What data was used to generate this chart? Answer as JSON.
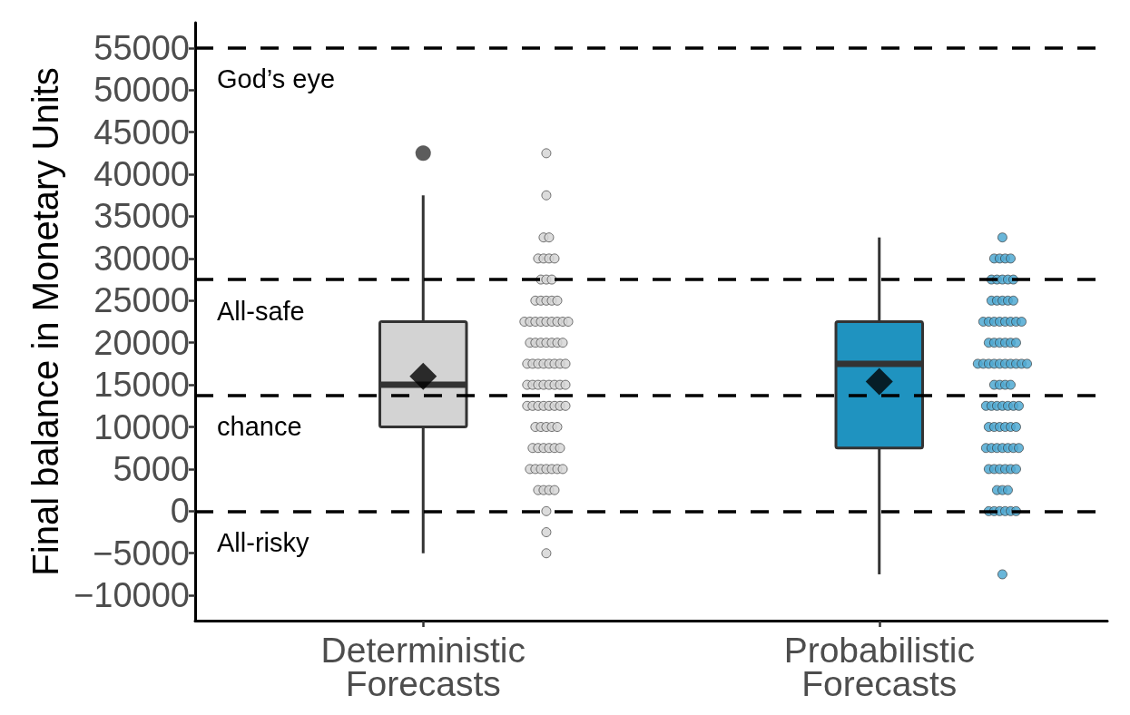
{
  "chart_data": {
    "type": "box",
    "ylabel": "Final balance in Monetary Units",
    "categories": [
      "Deterministic\nForecasts",
      "Probabilistic\nForecasts"
    ],
    "ylim": [
      -13000,
      58000
    ],
    "yticks": [
      {
        "value": -10000,
        "label": "−10000"
      },
      {
        "value": -5000,
        "label": "−5000"
      },
      0,
      5000,
      10000,
      15000,
      20000,
      25000,
      30000,
      35000,
      40000,
      45000,
      50000,
      55000
    ],
    "marker": "circle",
    "ref_lines": [
      {
        "axis": "y",
        "value": 55000,
        "label": "God’s eye",
        "color": "#000000",
        "line_style": "dashed"
      },
      {
        "axis": "y",
        "value": 27500,
        "label": "All-safe",
        "color": "#000000",
        "line_style": "dashed"
      },
      {
        "axis": "y",
        "value": 13750,
        "label": "chance",
        "color": "#000000",
        "line_style": "dashed"
      },
      {
        "axis": "y",
        "value": 0,
        "label": "All-risky",
        "color": "#000000",
        "line_style": "dashed"
      }
    ],
    "series": [
      {
        "colors": [
          "#d3d3d3",
          "#1f93c0"
        ],
        "boxes": [
          {
            "low": -5000,
            "q1": 10000,
            "median": 15000,
            "q3": 22500,
            "high": 37500,
            "mean": 16000,
            "outliers": [
              42500
            ]
          },
          {
            "low": -7500,
            "q1": 7500,
            "median": 17500,
            "q3": 22500,
            "high": 32500,
            "mean": 15400
          }
        ]
      },
      {
        "type": "scatter",
        "color": "#d6d6d6",
        "x": [
          "Deterministic\nForecasts",
          "Deterministic\nForecasts",
          "Deterministic\nForecasts",
          "Deterministic\nForecasts",
          "Deterministic\nForecasts",
          "Deterministic\nForecasts",
          "Deterministic\nForecasts",
          "Deterministic\nForecasts",
          "Deterministic\nForecasts",
          "Deterministic\nForecasts",
          "Deterministic\nForecasts",
          "Deterministic\nForecasts",
          "Deterministic\nForecasts",
          "Deterministic\nForecasts",
          "Deterministic\nForecasts",
          "Deterministic\nForecasts",
          "Deterministic\nForecasts",
          "Deterministic\nForecasts",
          "Deterministic\nForecasts",
          "Deterministic\nForecasts",
          "Deterministic\nForecasts",
          "Deterministic\nForecasts",
          "Deterministic\nForecasts",
          "Deterministic\nForecasts",
          "Deterministic\nForecasts",
          "Deterministic\nForecasts",
          "Deterministic\nForecasts",
          "Deterministic\nForecasts",
          "Deterministic\nForecasts",
          "Deterministic\nForecasts",
          "Deterministic\nForecasts",
          "Deterministic\nForecasts",
          "Deterministic\nForecasts",
          "Deterministic\nForecasts",
          "Deterministic\nForecasts",
          "Deterministic\nForecasts",
          "Deterministic\nForecasts",
          "Deterministic\nForecasts",
          "Deterministic\nForecasts",
          "Deterministic\nForecasts",
          "Deterministic\nForecasts",
          "Deterministic\nForecasts",
          "Deterministic\nForecasts",
          "Deterministic\nForecasts",
          "Deterministic\nForecasts",
          "Deterministic\nForecasts",
          "Deterministic\nForecasts",
          "Deterministic\nForecasts",
          "Deterministic\nForecasts",
          "Deterministic\nForecasts",
          "Deterministic\nForecasts",
          "Deterministic\nForecasts",
          "Deterministic\nForecasts",
          "Deterministic\nForecasts",
          "Deterministic\nForecasts",
          "Deterministic\nForecasts",
          "Deterministic\nForecasts",
          "Deterministic\nForecasts",
          "Deterministic\nForecasts",
          "Deterministic\nForecasts",
          "Deterministic\nForecasts",
          "Deterministic\nForecasts",
          "Deterministic\nForecasts",
          "Deterministic\nForecasts",
          "Deterministic\nForecasts",
          "Deterministic\nForecasts",
          "Deterministic\nForecasts",
          "Deterministic\nForecasts",
          "Deterministic\nForecasts",
          "Deterministic\nForecasts",
          "Deterministic\nForecasts",
          "Deterministic\nForecasts",
          "Deterministic\nForecasts",
          "Deterministic\nForecasts",
          "Deterministic\nForecasts",
          "Deterministic\nForecasts",
          "Deterministic\nForecasts",
          "Deterministic\nForecasts",
          "Deterministic\nForecasts",
          "Deterministic\nForecasts",
          "Deterministic\nForecasts"
        ],
        "values": [
          42500,
          37500,
          32500,
          32500,
          30000,
          30000,
          30000,
          30000,
          27500,
          27500,
          27500,
          25000,
          25000,
          25000,
          25000,
          25000,
          22500,
          22500,
          22500,
          22500,
          22500,
          22500,
          22500,
          22500,
          22500,
          20000,
          20000,
          20000,
          20000,
          20000,
          20000,
          20000,
          17500,
          17500,
          17500,
          17500,
          17500,
          17500,
          17500,
          17500,
          15000,
          15000,
          15000,
          15000,
          15000,
          15000,
          15000,
          15000,
          12500,
          12500,
          12500,
          12500,
          12500,
          12500,
          12500,
          12500,
          10000,
          10000,
          10000,
          10000,
          10000,
          7500,
          7500,
          7500,
          7500,
          7500,
          7500,
          5000,
          5000,
          5000,
          5000,
          5000,
          5000,
          5000,
          2500,
          2500,
          2500,
          2500,
          0,
          -2500,
          -5000
        ]
      },
      {
        "type": "scatter",
        "color": "#4fa9d2",
        "x": [
          "Probabilistic\nForecasts",
          "Probabilistic\nForecasts",
          "Probabilistic\nForecasts",
          "Probabilistic\nForecasts",
          "Probabilistic\nForecasts",
          "Probabilistic\nForecasts",
          "Probabilistic\nForecasts",
          "Probabilistic\nForecasts",
          "Probabilistic\nForecasts",
          "Probabilistic\nForecasts",
          "Probabilistic\nForecasts",
          "Probabilistic\nForecasts",
          "Probabilistic\nForecasts",
          "Probabilistic\nForecasts",
          "Probabilistic\nForecasts",
          "Probabilistic\nForecasts",
          "Probabilistic\nForecasts",
          "Probabilistic\nForecasts",
          "Probabilistic\nForecasts",
          "Probabilistic\nForecasts",
          "Probabilistic\nForecasts",
          "Probabilistic\nForecasts",
          "Probabilistic\nForecasts",
          "Probabilistic\nForecasts",
          "Probabilistic\nForecasts",
          "Probabilistic\nForecasts",
          "Probabilistic\nForecasts",
          "Probabilistic\nForecasts",
          "Probabilistic\nForecasts",
          "Probabilistic\nForecasts",
          "Probabilistic\nForecasts",
          "Probabilistic\nForecasts",
          "Probabilistic\nForecasts",
          "Probabilistic\nForecasts",
          "Probabilistic\nForecasts",
          "Probabilistic\nForecasts",
          "Probabilistic\nForecasts",
          "Probabilistic\nForecasts",
          "Probabilistic\nForecasts",
          "Probabilistic\nForecasts",
          "Probabilistic\nForecasts",
          "Probabilistic\nForecasts",
          "Probabilistic\nForecasts",
          "Probabilistic\nForecasts",
          "Probabilistic\nForecasts",
          "Probabilistic\nForecasts",
          "Probabilistic\nForecasts",
          "Probabilistic\nForecasts",
          "Probabilistic\nForecasts",
          "Probabilistic\nForecasts",
          "Probabilistic\nForecasts",
          "Probabilistic\nForecasts",
          "Probabilistic\nForecasts",
          "Probabilistic\nForecasts",
          "Probabilistic\nForecasts",
          "Probabilistic\nForecasts",
          "Probabilistic\nForecasts",
          "Probabilistic\nForecasts",
          "Probabilistic\nForecasts",
          "Probabilistic\nForecasts",
          "Probabilistic\nForecasts",
          "Probabilistic\nForecasts",
          "Probabilistic\nForecasts",
          "Probabilistic\nForecasts",
          "Probabilistic\nForecasts",
          "Probabilistic\nForecasts",
          "Probabilistic\nForecasts",
          "Probabilistic\nForecasts",
          "Probabilistic\nForecasts",
          "Probabilistic\nForecasts",
          "Probabilistic\nForecasts",
          "Probabilistic\nForecasts",
          "Probabilistic\nForecasts",
          "Probabilistic\nForecasts",
          "Probabilistic\nForecasts",
          "Probabilistic\nForecasts",
          "Probabilistic\nForecasts",
          "Probabilistic\nForecasts",
          "Probabilistic\nForecasts"
        ],
        "values": [
          32500,
          30000,
          30000,
          30000,
          30000,
          27500,
          27500,
          27500,
          27500,
          27500,
          25000,
          25000,
          25000,
          25000,
          25000,
          22500,
          22500,
          22500,
          22500,
          22500,
          22500,
          22500,
          22500,
          20000,
          20000,
          20000,
          20000,
          20000,
          20000,
          17500,
          17500,
          17500,
          17500,
          17500,
          17500,
          17500,
          17500,
          17500,
          17500,
          15000,
          15000,
          15000,
          15000,
          12500,
          12500,
          12500,
          12500,
          12500,
          12500,
          12500,
          10000,
          10000,
          10000,
          10000,
          10000,
          10000,
          7500,
          7500,
          7500,
          7500,
          7500,
          7500,
          7500,
          5000,
          5000,
          5000,
          5000,
          5000,
          5000,
          2500,
          2500,
          2500,
          0,
          0,
          0,
          0,
          0,
          0,
          -7500
        ]
      }
    ]
  }
}
